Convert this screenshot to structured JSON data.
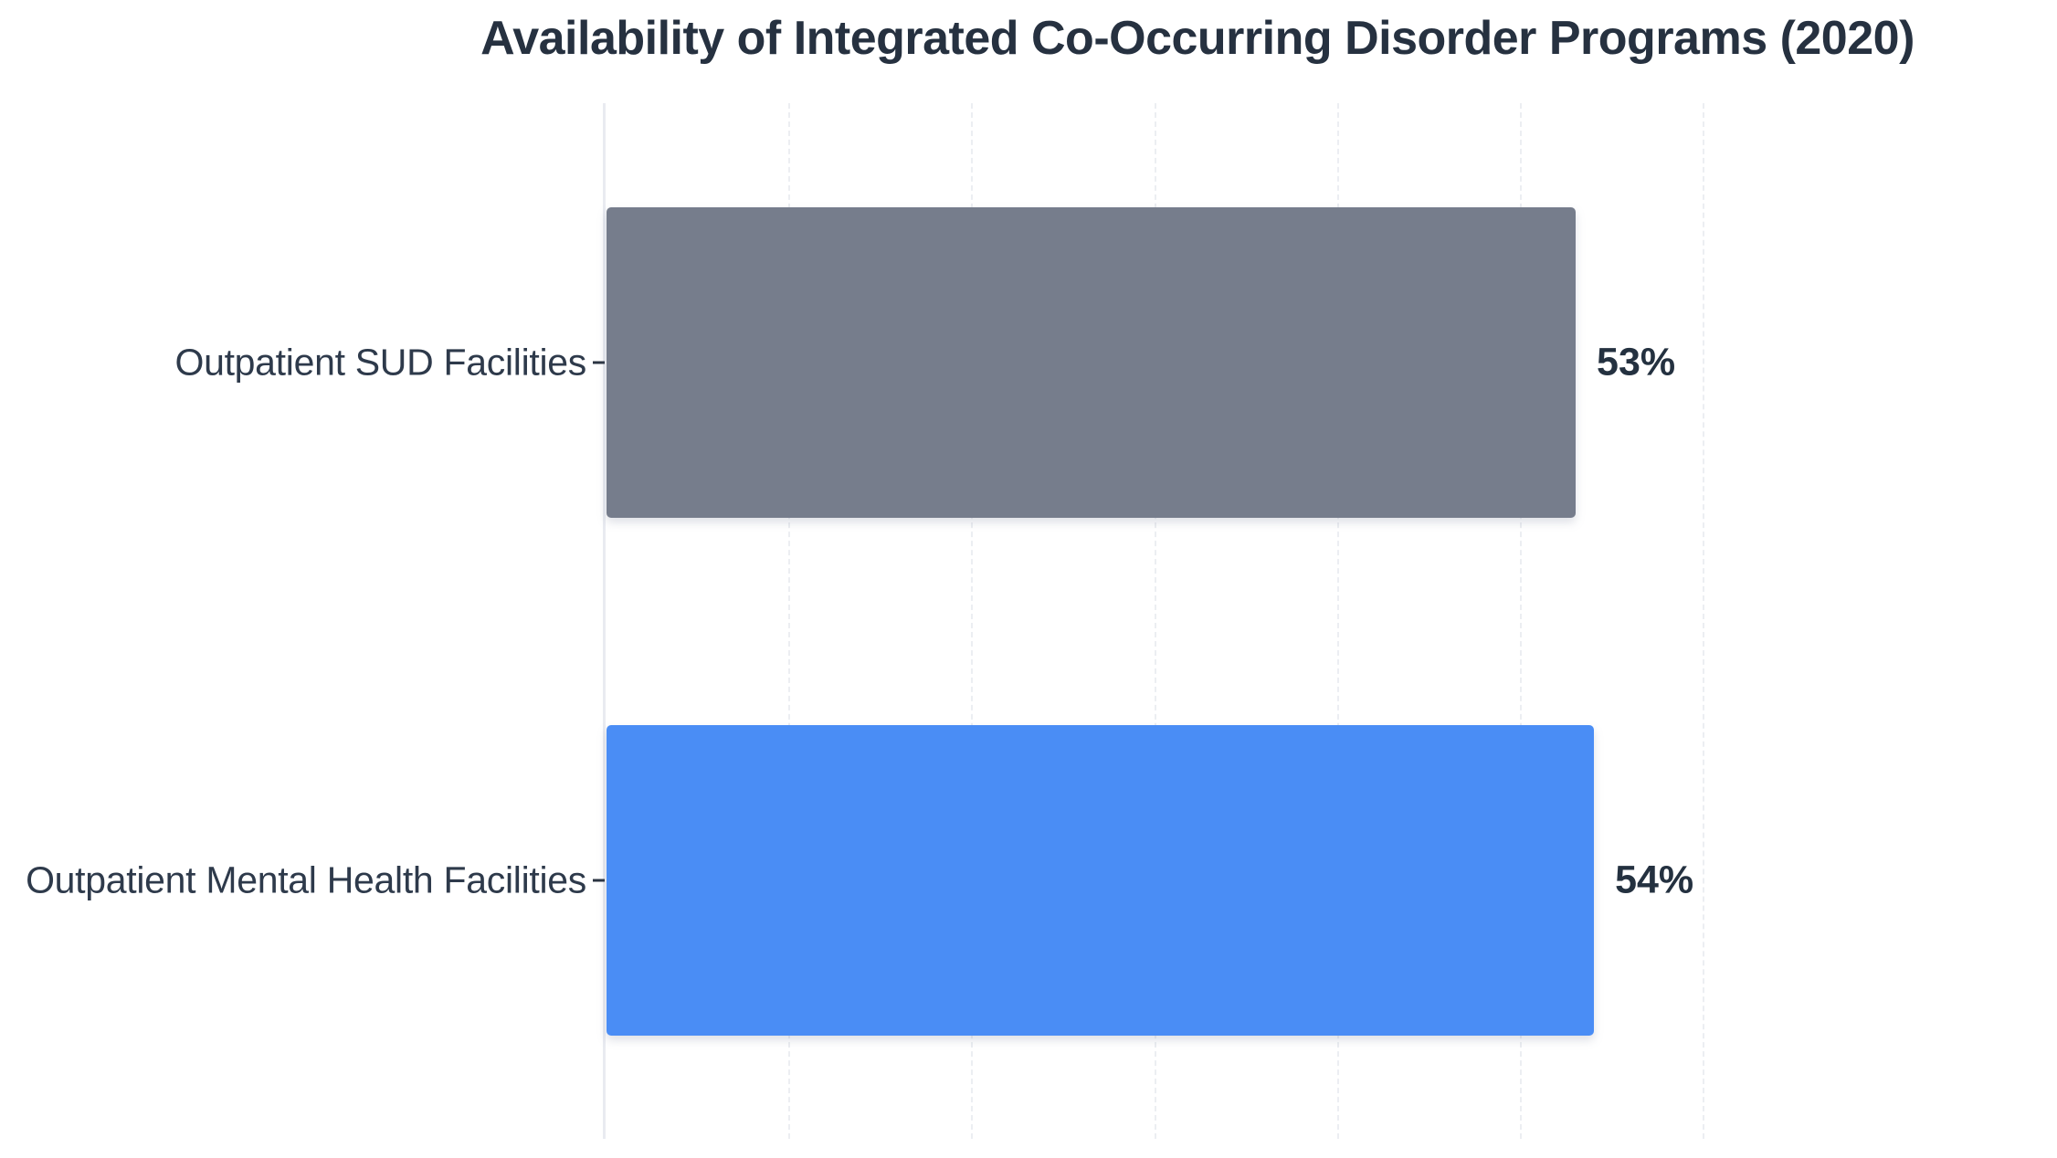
{
  "page": {
    "background_color": "#ffffff"
  },
  "chart_data": {
    "type": "bar",
    "orientation": "horizontal",
    "title": "Availability of Integrated Co-Occurring Disorder Programs (2020)",
    "categories": [
      "Outpatient SUD Facilities",
      "Outpatient Mental Health Facilities"
    ],
    "values": [
      53,
      54
    ],
    "value_labels": [
      "53%",
      "54%"
    ],
    "bar_colors": [
      "#767d8c",
      "#4a8df5"
    ],
    "xlabel": "",
    "ylabel": "",
    "xlim": [
      0,
      65
    ],
    "grid_pct_positions": [
      10,
      20,
      30,
      40,
      50,
      60
    ],
    "grid_style": "vertical-dashed",
    "x_tick_labels_visible": false,
    "legend": "none",
    "colors": {
      "title_text": "#263140",
      "category_label_text": "#2e3a4b",
      "value_label_text": "#243140",
      "y_axis_line": "#e9ebf1",
      "tick_mark": "#2b3442",
      "gridline": "#eceef2",
      "background": "#ffffff"
    }
  }
}
